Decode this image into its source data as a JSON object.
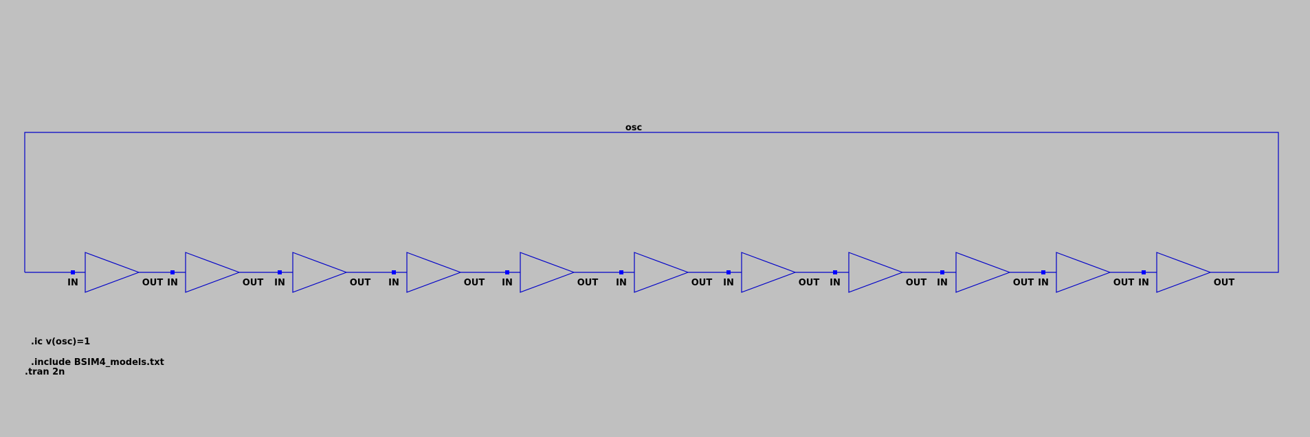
{
  "net_label": "osc",
  "pin_labels": {
    "input": "IN",
    "output": "OUT"
  },
  "buffer_count": 11,
  "colors": {
    "background": "#c0c0c0",
    "wire": "#0000c8",
    "pin": "#0000ff",
    "text": "#000000"
  },
  "directives": {
    "ic": ".ic v(osc)=1",
    "include": ".include BSIM4_models.txt",
    "tran": ".tran 2n"
  }
}
